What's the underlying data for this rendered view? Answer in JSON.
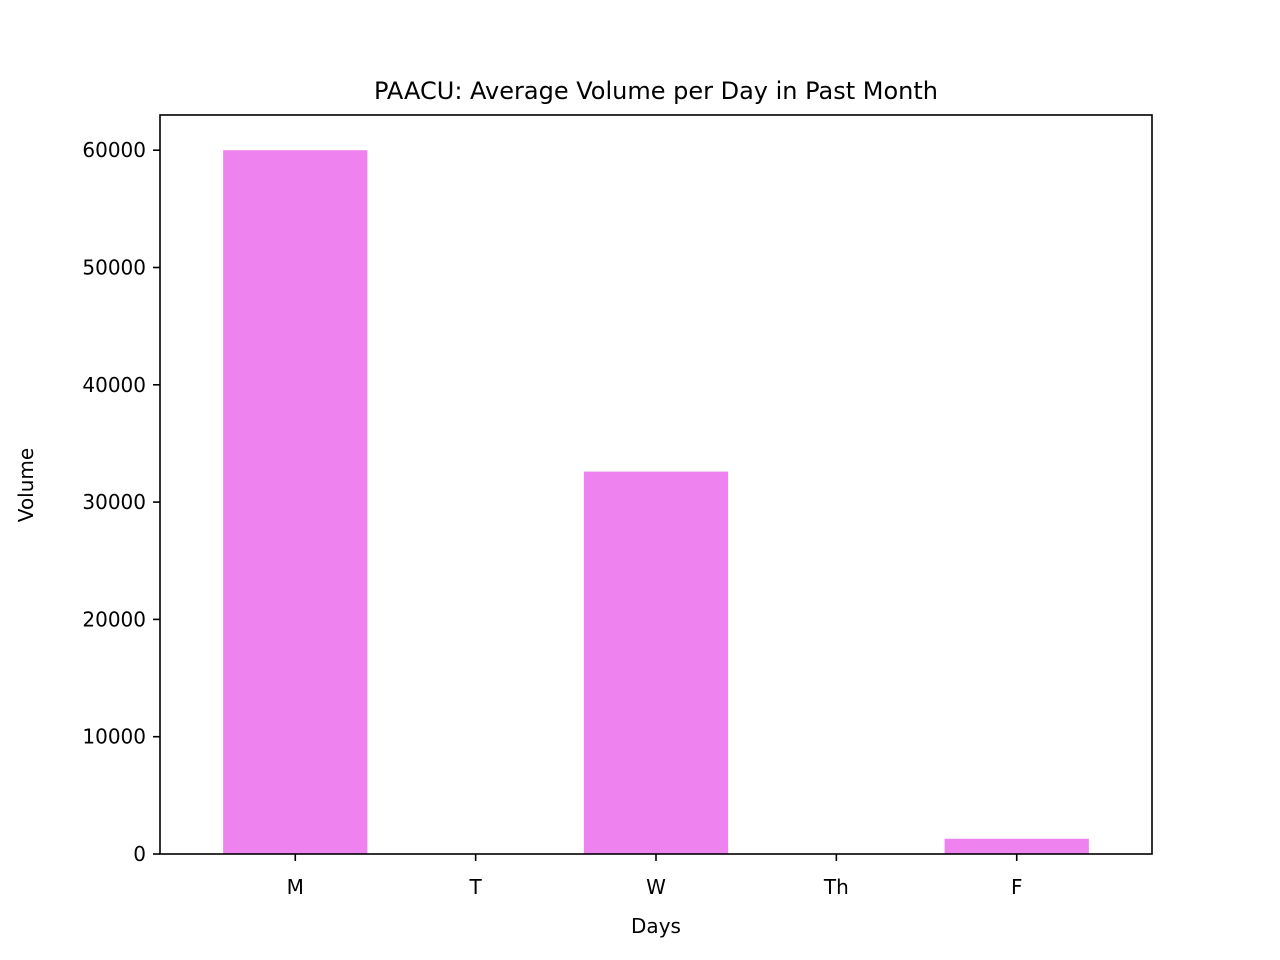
{
  "chart_data": {
    "type": "bar",
    "title": "PAACU: Average Volume per Day in Past Month",
    "xlabel": "Days",
    "ylabel": "Volume",
    "categories": [
      "M",
      "T",
      "W",
      "Th",
      "F"
    ],
    "values": [
      60000,
      0,
      32600,
      0,
      1300
    ],
    "ylim": [
      0,
      63000
    ],
    "yticks": [
      0,
      10000,
      20000,
      30000,
      40000,
      50000,
      60000
    ],
    "bar_color": "#ee82ee",
    "grid": false,
    "legend": "none"
  }
}
